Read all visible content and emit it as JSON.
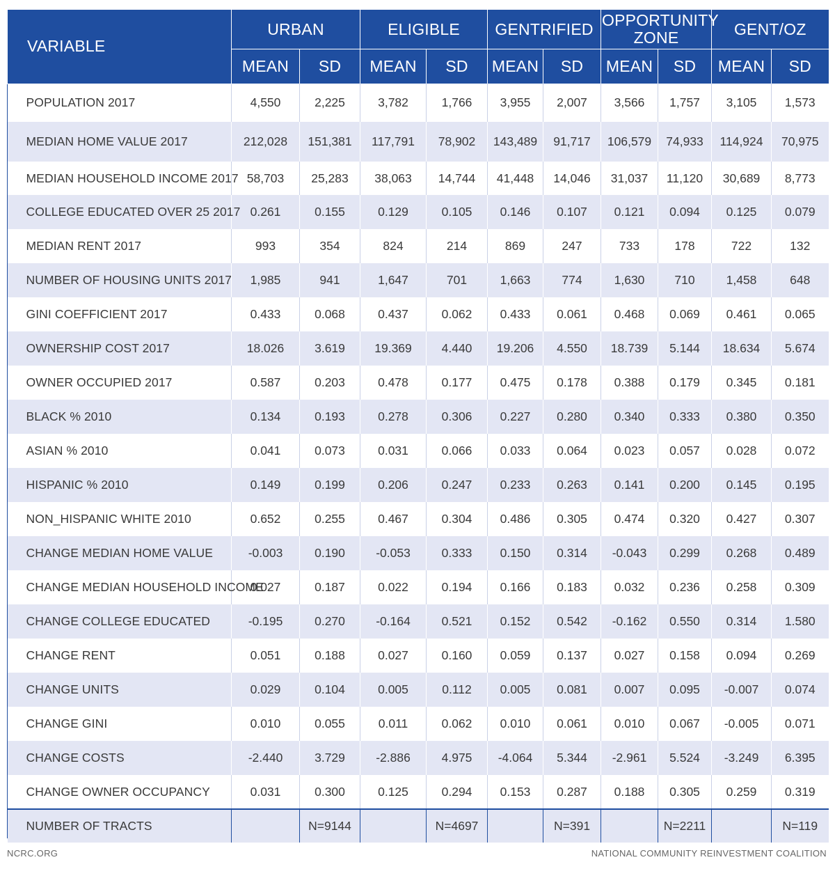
{
  "header": {
    "variable": "VARIABLE",
    "groups": [
      "URBAN",
      "ELIGIBLE",
      "GENTRIFIED",
      "OPPORTUNITY ZONE",
      "GENT/OZ"
    ],
    "mean": "MEAN",
    "sd": "SD"
  },
  "rows": [
    {
      "label": "POPULATION 2017",
      "values": [
        "4,550",
        "2,225",
        "3,782",
        "1,766",
        "3,955",
        "2,007",
        "3,566",
        "1,757",
        "3,105",
        "1,573"
      ]
    },
    {
      "label": "MEDIAN HOME VALUE 2017",
      "values": [
        "212,028",
        "151,381",
        "117,791",
        "78,902",
        "143,489",
        "91,717",
        "106,579",
        "74,933",
        "114,924",
        "70,975"
      ]
    },
    {
      "label": "MEDIAN HOUSEHOLD INCOME 2017",
      "values": [
        "58,703",
        "25,283",
        "38,063",
        "14,744",
        "41,448",
        "14,046",
        "31,037",
        "11,120",
        "30,689",
        "8,773"
      ]
    },
    {
      "label": "COLLEGE EDUCATED OVER 25 2017",
      "values": [
        "0.261",
        "0.155",
        "0.129",
        "0.105",
        "0.146",
        "0.107",
        "0.121",
        "0.094",
        "0.125",
        "0.079"
      ]
    },
    {
      "label": "MEDIAN RENT 2017",
      "values": [
        "993",
        "354",
        "824",
        "214",
        "869",
        "247",
        "733",
        "178",
        "722",
        "132"
      ]
    },
    {
      "label": "NUMBER OF HOUSING UNITS 2017",
      "values": [
        "1,985",
        "941",
        "1,647",
        "701",
        "1,663",
        "774",
        "1,630",
        "710",
        "1,458",
        "648"
      ]
    },
    {
      "label": "GINI COEFFICIENT 2017",
      "values": [
        "0.433",
        "0.068",
        "0.437",
        "0.062",
        "0.433",
        "0.061",
        "0.468",
        "0.069",
        "0.461",
        "0.065"
      ]
    },
    {
      "label": "OWNERSHIP COST 2017",
      "values": [
        "18.026",
        "3.619",
        "19.369",
        "4.440",
        "19.206",
        "4.550",
        "18.739",
        "5.144",
        "18.634",
        "5.674"
      ]
    },
    {
      "label": "OWNER OCCUPIED 2017",
      "values": [
        "0.587",
        "0.203",
        "0.478",
        "0.177",
        "0.475",
        "0.178",
        "0.388",
        "0.179",
        "0.345",
        "0.181"
      ]
    },
    {
      "label": "BLACK % 2010",
      "values": [
        "0.134",
        "0.193",
        "0.278",
        "0.306",
        "0.227",
        "0.280",
        "0.340",
        "0.333",
        "0.380",
        "0.350"
      ]
    },
    {
      "label": "ASIAN % 2010",
      "values": [
        "0.041",
        "0.073",
        "0.031",
        "0.066",
        "0.033",
        "0.064",
        "0.023",
        "0.057",
        "0.028",
        "0.072"
      ]
    },
    {
      "label": "HISPANIC % 2010",
      "values": [
        "0.149",
        "0.199",
        "0.206",
        "0.247",
        "0.233",
        "0.263",
        "0.141",
        "0.200",
        "0.145",
        "0.195"
      ]
    },
    {
      "label": "NON_HISPANIC WHITE 2010",
      "values": [
        "0.652",
        "0.255",
        "0.467",
        "0.304",
        "0.486",
        "0.305",
        "0.474",
        "0.320",
        "0.427",
        "0.307"
      ]
    },
    {
      "label": "CHANGE MEDIAN HOME VALUE",
      "values": [
        "-0.003",
        "0.190",
        "-0.053",
        "0.333",
        "0.150",
        "0.314",
        "-0.043",
        "0.299",
        "0.268",
        "0.489"
      ]
    },
    {
      "label": "CHANGE MEDIAN HOUSEHOLD INCOME",
      "values": [
        "0.027",
        "0.187",
        "0.022",
        "0.194",
        "0.166",
        "0.183",
        "0.032",
        "0.236",
        "0.258",
        "0.309"
      ]
    },
    {
      "label": "CHANGE COLLEGE EDUCATED",
      "values": [
        "-0.195",
        "0.270",
        "-0.164",
        "0.521",
        "0.152",
        "0.542",
        "-0.162",
        "0.550",
        "0.314",
        "1.580"
      ]
    },
    {
      "label": "CHANGE RENT",
      "values": [
        "0.051",
        "0.188",
        "0.027",
        "0.160",
        "0.059",
        "0.137",
        "0.027",
        "0.158",
        "0.094",
        "0.269"
      ]
    },
    {
      "label": "CHANGE UNITS",
      "values": [
        "0.029",
        "0.104",
        "0.005",
        "0.112",
        "0.005",
        "0.081",
        "0.007",
        "0.095",
        "-0.007",
        "0.074"
      ]
    },
    {
      "label": "CHANGE GINI",
      "values": [
        "0.010",
        "0.055",
        "0.011",
        "0.062",
        "0.010",
        "0.061",
        "0.010",
        "0.067",
        "-0.005",
        "0.071"
      ]
    },
    {
      "label": "CHANGE COSTS",
      "values": [
        "-2.440",
        "3.729",
        "-2.886",
        "4.975",
        "-4.064",
        "5.344",
        "-2.961",
        "5.524",
        "-3.249",
        "6.395"
      ]
    },
    {
      "label": "CHANGE OWNER OCCUPANCY",
      "values": [
        "0.031",
        "0.300",
        "0.125",
        "0.294",
        "0.153",
        "0.287",
        "0.188",
        "0.305",
        "0.259",
        "0.319"
      ]
    }
  ],
  "tracts": {
    "label": "NUMBER OF TRACTS",
    "values": [
      "",
      "N=9144",
      "",
      "N=4697",
      "",
      "N=391",
      "",
      "N=2211",
      "",
      "N=119"
    ]
  },
  "footer": {
    "left": "NCRC.ORG",
    "right": "NATIONAL COMMUNITY REINVESTMENT COALITION"
  },
  "colors": {
    "header_bg": "#1f4ea0",
    "stripe_bg": "#e3e6f4"
  }
}
